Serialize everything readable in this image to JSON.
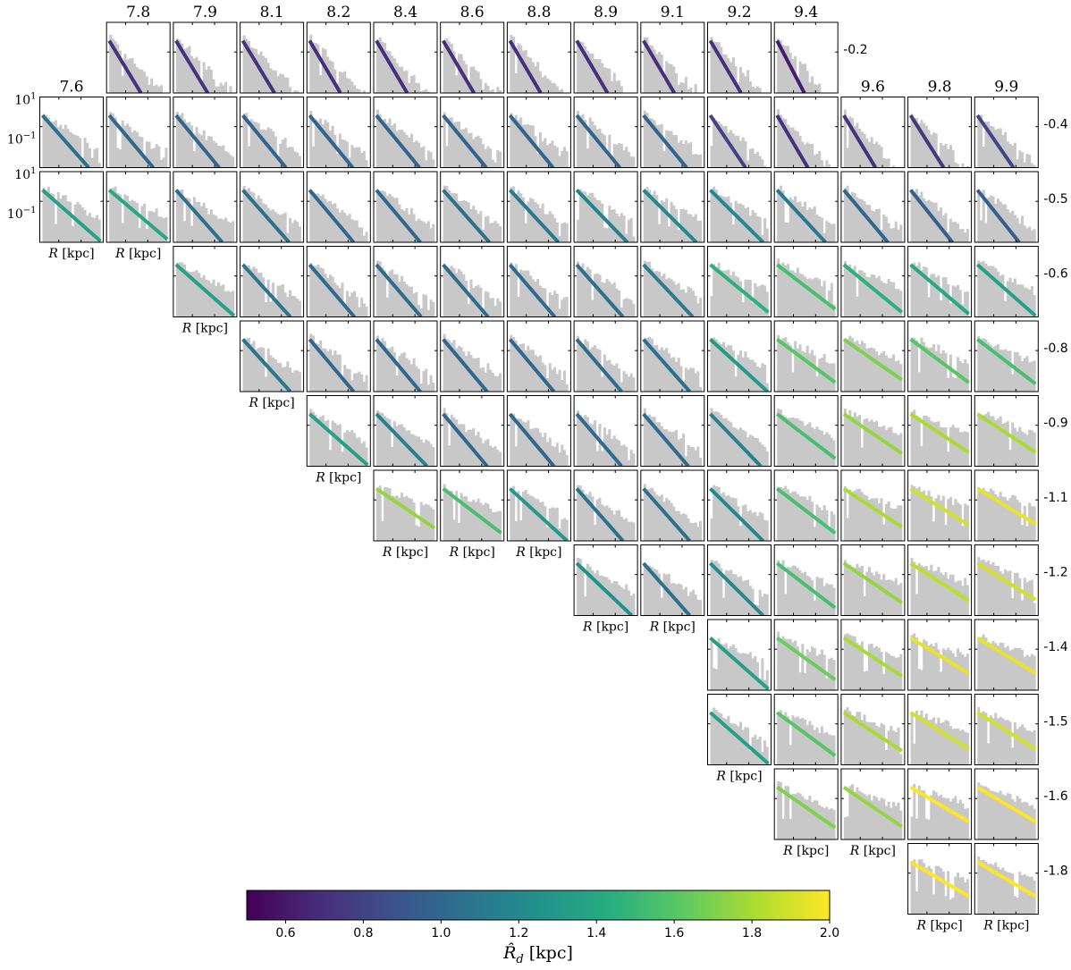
{
  "chart_data": {
    "type": "bar",
    "description_grid": "Grid of radial surface density histograms (log scale) with exponential fits, columns by first parameter, rows by second parameter",
    "column_labels": [
      "7.6",
      "7.8",
      "7.9",
      "8.1",
      "8.2",
      "8.4",
      "8.6",
      "8.8",
      "8.9",
      "9.1",
      "9.2",
      "9.4",
      "9.6",
      "9.8",
      "9.9"
    ],
    "row_labels": [
      "-0.2",
      "-0.4",
      "-0.5",
      "-0.6",
      "-0.8",
      "-0.9",
      "-1.1",
      "-1.2",
      "-1.4",
      "-1.5",
      "-1.6",
      "-1.8"
    ],
    "xlabel": "R [kpc]",
    "xlabel_italic": "R",
    "xlabel_unit": " [kpc]",
    "ytick_labels": [
      {
        "base": "10",
        "exp": "1"
      },
      {
        "base": "10",
        "exp": "−1"
      }
    ],
    "colormap": "viridis",
    "colorbar": {
      "min": 0.5,
      "max": 2.0,
      "ticks": [
        "0.6",
        "0.8",
        "1.0",
        "1.2",
        "1.4",
        "1.6",
        "1.8",
        "2.0"
      ],
      "tick_values": [
        0.6,
        0.8,
        1.0,
        1.2,
        1.4,
        1.6,
        1.8,
        2.0
      ],
      "label_symbol": "R̂",
      "label_sub": "d",
      "label_unit": " [kpc]"
    },
    "histogram_color": "#c8c8c8",
    "rows": [
      {
        "row": "-0.2",
        "cols": [
          1,
          2,
          3,
          4,
          5,
          6,
          7,
          8,
          9,
          10,
          11
        ],
        "rd": [
          0.72,
          0.72,
          0.72,
          0.7,
          0.7,
          0.7,
          0.7,
          0.7,
          0.7,
          0.7,
          0.62
        ]
      },
      {
        "row": "-0.4",
        "cols": [
          0,
          1,
          2,
          3,
          4,
          5,
          6,
          7,
          8,
          9,
          10,
          11,
          12,
          13,
          14
        ],
        "rd": [
          1.05,
          1.0,
          0.98,
          0.98,
          0.98,
          0.98,
          0.98,
          0.98,
          0.98,
          0.98,
          0.8,
          0.7,
          0.72,
          0.75,
          0.82
        ]
      },
      {
        "row": "-0.5",
        "cols": [
          0,
          1,
          2,
          3,
          4,
          5,
          6,
          7,
          8,
          9,
          10,
          11,
          12,
          13,
          14
        ],
        "rd": [
          1.35,
          1.4,
          1.05,
          1.05,
          1.0,
          1.0,
          1.05,
          1.1,
          1.15,
          1.2,
          1.2,
          1.1,
          1.0,
          0.95,
          0.95
        ]
      },
      {
        "row": "-0.6",
        "cols": [
          2,
          3,
          4,
          5,
          6,
          7,
          8,
          9,
          10,
          11,
          12,
          13,
          14
        ],
        "rd": [
          1.35,
          1.08,
          1.02,
          1.02,
          1.02,
          1.02,
          1.05,
          1.12,
          1.45,
          1.55,
          1.45,
          1.4,
          1.35
        ]
      },
      {
        "row": "-0.8",
        "cols": [
          3,
          4,
          5,
          6,
          7,
          8,
          9,
          10,
          11,
          12,
          13,
          14
        ],
        "rd": [
          1.08,
          1.0,
          1.0,
          1.0,
          1.0,
          1.02,
          1.05,
          1.3,
          1.6,
          1.7,
          1.6,
          1.55
        ]
      },
      {
        "row": "-0.9",
        "cols": [
          4,
          5,
          6,
          7,
          8,
          9,
          10,
          11,
          12,
          13,
          14
        ],
        "rd": [
          1.35,
          1.15,
          1.0,
          1.0,
          1.02,
          1.02,
          1.15,
          1.55,
          1.75,
          1.8,
          1.8
        ]
      },
      {
        "row": "-1.1",
        "cols": [
          5,
          6,
          7,
          8,
          9,
          10,
          11,
          12,
          13,
          14
        ],
        "rd": [
          1.75,
          1.55,
          1.3,
          1.05,
          1.05,
          1.2,
          1.55,
          1.8,
          1.9,
          1.95
        ]
      },
      {
        "row": "-1.2",
        "cols": [
          8,
          9,
          10,
          11,
          12,
          13,
          14
        ],
        "rd": [
          1.25,
          1.05,
          1.2,
          1.55,
          1.75,
          1.85,
          1.9
        ]
      },
      {
        "row": "-1.4",
        "cols": [
          10,
          11,
          12,
          13,
          14
        ],
        "rd": [
          1.35,
          1.65,
          1.8,
          1.95,
          1.95
        ]
      },
      {
        "row": "-1.5",
        "cols": [
          10,
          11,
          12,
          13,
          14
        ],
        "rd": [
          1.35,
          1.6,
          1.8,
          1.9,
          1.9
        ]
      },
      {
        "row": "-1.6",
        "cols": [
          11,
          12,
          13,
          14
        ],
        "rd": [
          1.7,
          1.75,
          2.0,
          2.0
        ]
      },
      {
        "row": "-1.8",
        "cols": [
          13,
          14
        ],
        "rd": [
          2.0,
          2.0
        ]
      }
    ]
  }
}
